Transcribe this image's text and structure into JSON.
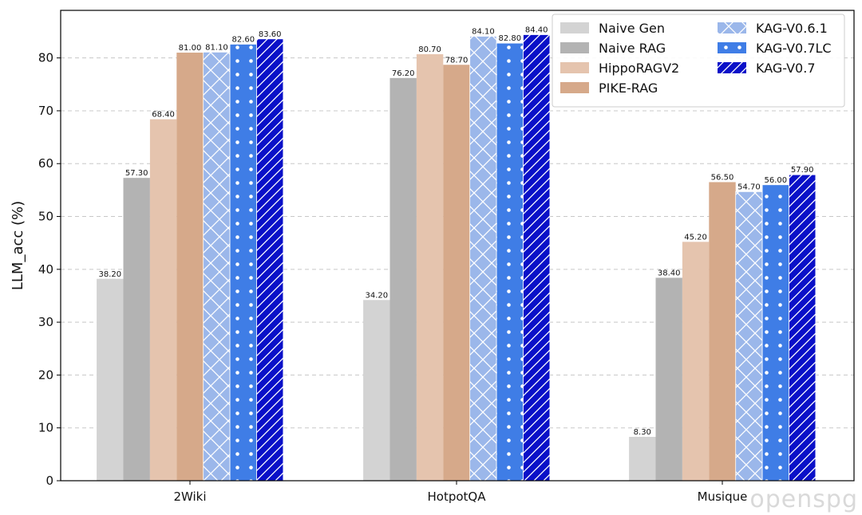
{
  "chart_data": {
    "type": "bar",
    "categories": [
      "2Wiki",
      "HotpotQA",
      "Musique"
    ],
    "ylabel": "LLM_acc (%)",
    "xlabel": "",
    "ylim": [
      0,
      89
    ],
    "yticks": [
      0,
      10,
      20,
      30,
      40,
      50,
      60,
      70,
      80
    ],
    "grid": "horizontal dashed",
    "legend_position": "top-right",
    "series": [
      {
        "name": "Naive Gen",
        "color": "#d3d3d3",
        "pattern": "none",
        "values": [
          38.2,
          34.2,
          8.3
        ],
        "labels": [
          "38.20",
          "34.20",
          "8.30"
        ]
      },
      {
        "name": "Naive RAG",
        "color": "#b3b3b3",
        "pattern": "none",
        "values": [
          57.3,
          76.2,
          38.4
        ],
        "labels": [
          "57.30",
          "76.20",
          "38.40"
        ]
      },
      {
        "name": "HippoRAGV2",
        "color": "#e5c4ae",
        "pattern": "none",
        "values": [
          68.4,
          80.7,
          45.2
        ],
        "labels": [
          "68.40",
          "80.70",
          "45.20"
        ]
      },
      {
        "name": "PIKE-RAG",
        "color": "#d6a98a",
        "pattern": "none",
        "values": [
          81.0,
          78.7,
          56.5
        ],
        "labels": [
          "81.00",
          "78.70",
          "56.50"
        ]
      },
      {
        "name": "KAG-V0.6.1",
        "color": "#9bb7ea",
        "pattern": "cross",
        "values": [
          81.1,
          84.1,
          54.7
        ],
        "labels": [
          "81.10",
          "84.10",
          "54.70"
        ]
      },
      {
        "name": "KAG-V0.7LC",
        "color": "#3f7de6",
        "pattern": "dots",
        "values": [
          82.6,
          82.8,
          56.0
        ],
        "labels": [
          "82.60",
          "82.80",
          "56.00"
        ]
      },
      {
        "name": "KAG-V0.7",
        "color": "#0a10c8",
        "pattern": "diag",
        "values": [
          83.6,
          84.4,
          57.9
        ],
        "labels": [
          "83.60",
          "84.40",
          "57.90"
        ]
      }
    ]
  },
  "watermark": "openspg"
}
